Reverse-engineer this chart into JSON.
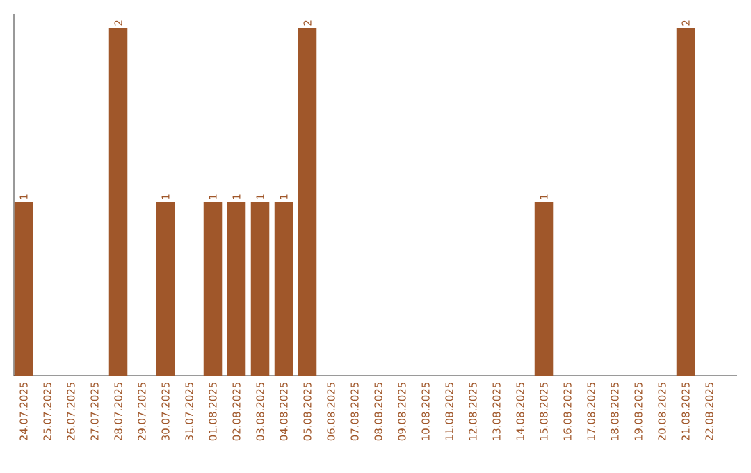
{
  "chart_data": {
    "type": "bar",
    "categories": [
      "24.07.2025",
      "25.07.2025",
      "26.07.2025",
      "27.07.2025",
      "28.07.2025",
      "29.07.2025",
      "30.07.2025",
      "31.07.2025",
      "01.08.2025",
      "02.08.2025",
      "03.08.2025",
      "04.08.2025",
      "05.08.2025",
      "06.08.2025",
      "07.08.2025",
      "08.08.2025",
      "09.08.2025",
      "10.08.2025",
      "11.08.2025",
      "12.08.2025",
      "13.08.2025",
      "14.08.2025",
      "15.08.2025",
      "16.08.2025",
      "17.08.2025",
      "18.08.2025",
      "19.08.2025",
      "20.08.2025",
      "21.08.2025",
      "22.08.2025"
    ],
    "values": [
      1,
      0,
      0,
      0,
      2,
      0,
      1,
      0,
      1,
      1,
      1,
      1,
      2,
      0,
      0,
      0,
      0,
      0,
      0,
      0,
      0,
      0,
      1,
      0,
      0,
      0,
      0,
      0,
      2,
      0
    ],
    "value_labels": [
      "1",
      null,
      null,
      null,
      "2",
      null,
      "1",
      null,
      "1",
      "1",
      "1",
      "1",
      "2",
      null,
      null,
      null,
      null,
      null,
      null,
      null,
      null,
      null,
      "1",
      null,
      null,
      null,
      null,
      null,
      "2",
      null
    ],
    "color": "#a0572a"
  }
}
